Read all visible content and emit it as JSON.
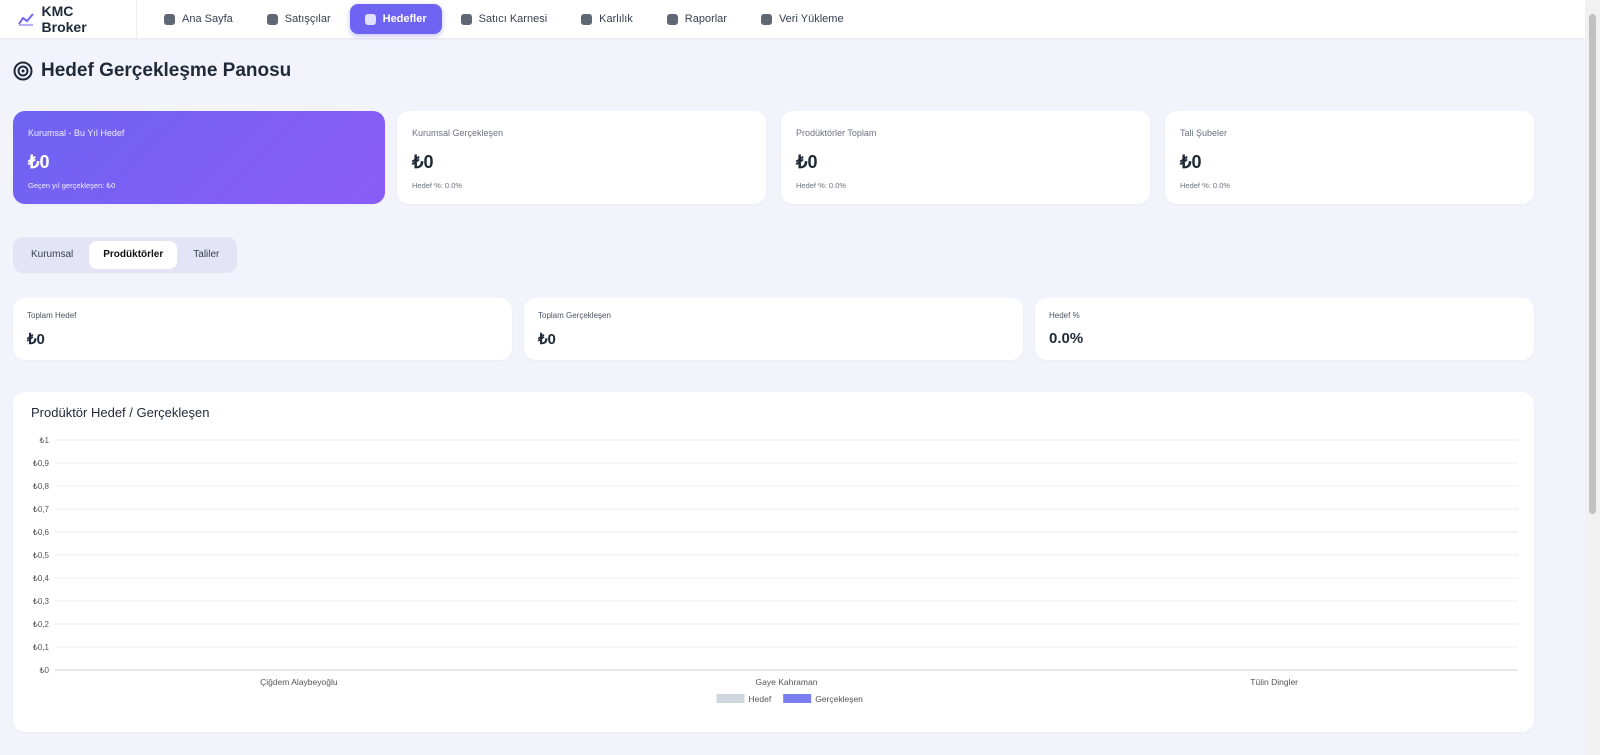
{
  "nav": {
    "brand": "KMC Broker",
    "items": [
      "Ana Sayfa",
      "Satışçılar",
      "Hedefler",
      "Satıcı Karnesi",
      "Karlılık",
      "Raporlar",
      "Veri Yükleme"
    ],
    "active": 2
  },
  "page_title": "Hedef Gerçekleşme Panosu",
  "kpis": [
    {
      "label": "Kurumsal - Bu Yıl Hedef",
      "value": "₺0",
      "note": "Geçen yıl gerçekleşen: ₺0"
    },
    {
      "label": "Kurumsal Gerçekleşen",
      "value": "₺0",
      "note": "Hedef %: 0.0%"
    },
    {
      "label": "Prodüktörler Toplam",
      "value": "₺0",
      "note": "Hedef %: 0.0%"
    },
    {
      "label": "Tali Şubeler",
      "value": "₺0",
      "note": "Hedef %: 0.0%"
    }
  ],
  "tabs": {
    "items": [
      "Kurumsal",
      "Prodüktörler",
      "Taliler"
    ],
    "active": 1
  },
  "summary": [
    {
      "label": "Toplam Hedef",
      "value": "₺0"
    },
    {
      "label": "Toplam Gerçekleşen",
      "value": "₺0"
    },
    {
      "label": "Hedef %",
      "value": "0.0%"
    }
  ],
  "chart_data": {
    "type": "bar",
    "title": "Prodüktör Hedef / Gerçekleşen",
    "categories": [
      "Çiğdem Alaybeyoğlu",
      "Gaye Kahraman",
      "Tülin Dingler"
    ],
    "series": [
      {
        "name": "Hedef",
        "color": "#cfd6de",
        "values": [
          0,
          0,
          0
        ]
      },
      {
        "name": "Gerçekleşen",
        "color": "#7b7ef0",
        "values": [
          0,
          0,
          0
        ]
      }
    ],
    "ylim": [
      0,
      1
    ],
    "yticks": [
      {
        "value": 0,
        "label": "₺0"
      },
      {
        "value": 0.1,
        "label": "₺0,1"
      },
      {
        "value": 0.2,
        "label": "₺0,2"
      },
      {
        "value": 0.3,
        "label": "₺0,3"
      },
      {
        "value": 0.4,
        "label": "₺0,4"
      },
      {
        "value": 0.5,
        "label": "₺0,5"
      },
      {
        "value": 0.6,
        "label": "₺0,6"
      },
      {
        "value": 0.7,
        "label": "₺0,7"
      },
      {
        "value": 0.8,
        "label": "₺0,8"
      },
      {
        "value": 0.9,
        "label": "₺0,9"
      },
      {
        "value": 1,
        "label": "₺1"
      }
    ],
    "grid": true,
    "legend": "bottom"
  }
}
